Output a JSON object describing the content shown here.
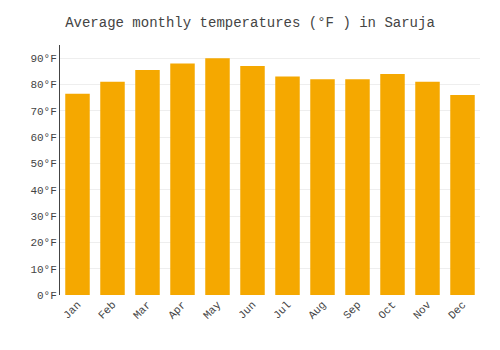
{
  "chart_data": {
    "type": "bar",
    "title": "Average monthly temperatures (°F ) in Saruja",
    "categories": [
      "Jan",
      "Feb",
      "Mar",
      "Apr",
      "May",
      "Jun",
      "Jul",
      "Aug",
      "Sep",
      "Oct",
      "Nov",
      "Dec"
    ],
    "values": [
      76.5,
      81.0,
      85.5,
      88.0,
      90.0,
      87.0,
      83.0,
      82.0,
      82.0,
      84.0,
      81.0,
      76.0
    ],
    "color": "#F5A800",
    "ylim": [
      0,
      95
    ],
    "yticks": [
      {
        "value": 0,
        "label": "0°F"
      },
      {
        "value": 10,
        "label": "10°F"
      },
      {
        "value": 20,
        "label": "20°F"
      },
      {
        "value": 30,
        "label": "30°F"
      },
      {
        "value": 40,
        "label": "40°F"
      },
      {
        "value": 50,
        "label": "50°F"
      },
      {
        "value": 60,
        "label": "60°F"
      },
      {
        "value": 70,
        "label": "70°F"
      },
      {
        "value": 80,
        "label": "80°F"
      },
      {
        "value": 90,
        "label": "90°F"
      }
    ],
    "grid": true
  }
}
